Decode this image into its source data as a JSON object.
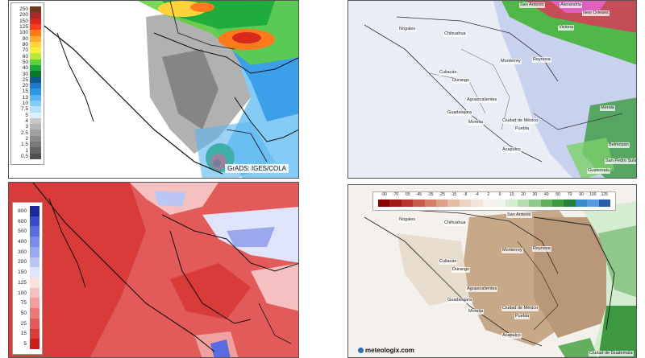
{
  "panels": {
    "top_left": {
      "credit": "GrADS: IGES/COLA",
      "legend": {
        "labels": [
          "250",
          "200",
          "150",
          "125",
          "100",
          "90",
          "80",
          "70",
          "60",
          "50",
          "40",
          "30",
          "25",
          "20",
          "15",
          "13",
          "10",
          "7.5",
          "5",
          "4",
          "3",
          "2.5",
          "2",
          "1.5",
          "1",
          "0.5"
        ],
        "colors": [
          "#6b3a1f",
          "#a52a2a",
          "#d9281c",
          "#ff3b1f",
          "#ff7a1a",
          "#ffab2a",
          "#ffd43a",
          "#f2f23a",
          "#b9e83a",
          "#5fd13a",
          "#19a83a",
          "#0a7a2a",
          "#0f5a8a",
          "#1f78c8",
          "#2f96e6",
          "#58b4f0",
          "#84ccf6",
          "#b3e1fb",
          "#d8f0fd",
          "#c8c8c8",
          "#b4b4b4",
          "#a0a0a0",
          "#8c8c8c",
          "#787878",
          "#646464",
          "#505050"
        ]
      }
    },
    "top_right": {
      "cities": [
        {
          "name": "Nogales"
        },
        {
          "name": "Chihuahua"
        },
        {
          "name": "Monterrey"
        },
        {
          "name": "Reynosa"
        },
        {
          "name": "Culiacán"
        },
        {
          "name": "Durango"
        },
        {
          "name": "Aguascalientes"
        },
        {
          "name": "Guadalajara"
        },
        {
          "name": "Morelia"
        },
        {
          "name": "Ciudad de México"
        },
        {
          "name": "Puebla"
        },
        {
          "name": "Acapulco"
        },
        {
          "name": "Mérida"
        },
        {
          "name": "Belmopan"
        },
        {
          "name": "San Pedro Sula"
        },
        {
          "name": "Guatemala"
        },
        {
          "name": "Victoria"
        },
        {
          "name": "New Orleans"
        },
        {
          "name": "Alexandria"
        },
        {
          "name": "San Antonio"
        }
      ]
    },
    "bottom_left": {
      "legend": {
        "labels": [
          "800",
          "600",
          "500",
          "400",
          "300",
          "200",
          "150",
          "125",
          "100",
          "75",
          "50",
          "25",
          "15",
          "5"
        ],
        "colors": [
          "#1a2a9a",
          "#3a4ac8",
          "#5a6ae0",
          "#7a8ae8",
          "#9aa8ee",
          "#bcc6f4",
          "#dfe4fa",
          "#fbe0e0",
          "#f6c0c0",
          "#f0a0a0",
          "#ea7a7a",
          "#e25a5a",
          "#d93a3a",
          "#c81e1e"
        ]
      }
    },
    "bottom_right": {
      "brand": "meteologix.com",
      "legend": {
        "ticks": [
          "-90",
          "-70",
          "-55",
          "-45",
          "-35",
          "-25",
          "-15",
          "-8",
          "-4",
          "2",
          "6",
          "10",
          "20",
          "30",
          "40",
          "50",
          "70",
          "90",
          "100",
          "125"
        ],
        "colors": [
          "#8b0000",
          "#a11a1a",
          "#b83232",
          "#c85a4a",
          "#d28068",
          "#dca086",
          "#e4bca4",
          "#ecd4c0",
          "#f2e4d6",
          "#f7f2ec",
          "#eef5ec",
          "#d4ecd0",
          "#b4dcae",
          "#8ec88a",
          "#62b05e",
          "#3e9840",
          "#24803a",
          "#3a8ac8",
          "#5a9ade",
          "#2a5aaa"
        ]
      },
      "cities": [
        {
          "name": "Nogales"
        },
        {
          "name": "Chihuahua"
        },
        {
          "name": "San Antonio"
        },
        {
          "name": "Monterrey"
        },
        {
          "name": "Reynosa"
        },
        {
          "name": "Culiacán"
        },
        {
          "name": "Durango"
        },
        {
          "name": "Aguascalientes"
        },
        {
          "name": "Guadalajara"
        },
        {
          "name": "Morelia"
        },
        {
          "name": "Ciudad de México"
        },
        {
          "name": "Puebla"
        },
        {
          "name": "Acapulco"
        },
        {
          "name": "Ciudad de Guatemala"
        }
      ]
    }
  }
}
